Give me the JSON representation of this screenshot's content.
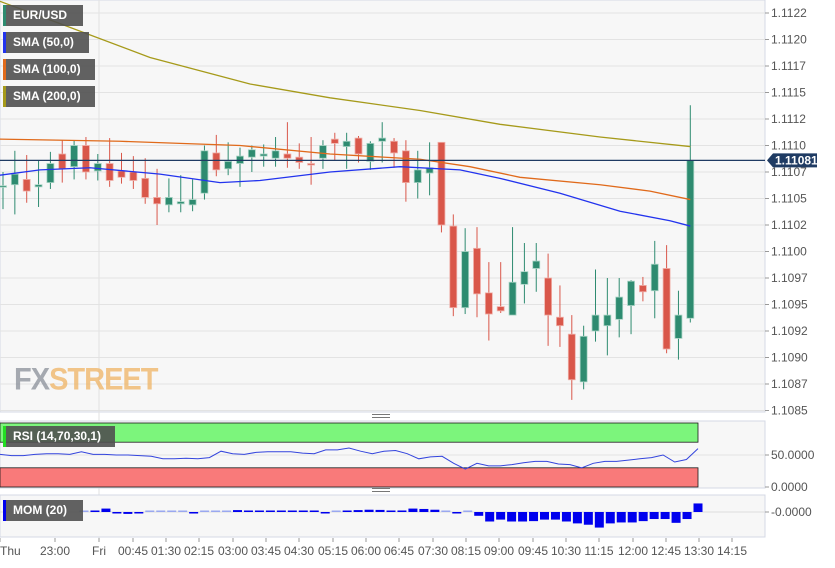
{
  "symbol": "EUR/USD",
  "legend": [
    {
      "label": "EUR/USD",
      "color": "#2e8b70"
    },
    {
      "label": "SMA (50,0)",
      "color": "#2233ee"
    },
    {
      "label": "SMA (100,0)",
      "color": "#e06a1b"
    },
    {
      "label": "SMA (200,0)",
      "color": "#a69a1a"
    }
  ],
  "logo": {
    "part1": "FX",
    "part2": "STREET"
  },
  "colors": {
    "up": "#2e8b70",
    "down": "#d9574a",
    "sma50": "#2233ee",
    "sma100": "#e06a1b",
    "sma200": "#a69a1a",
    "price_line": "#1f3b63",
    "rsi_line": "#3344dd",
    "rsi_overbought": "#7cf57c",
    "rsi_oversold": "#f97a7a",
    "mom_bar": "#0000ee",
    "grid": "#e3e3e3",
    "panel_bg": "#f7f7f7",
    "axis_text": "#555555"
  },
  "price_axis": {
    "ticks": [
      "1.1122",
      "1.1120",
      "1.1117",
      "1.1115",
      "1.1112",
      "1.1110",
      "1.1107",
      "1.1105",
      "1.1102",
      "1.1100",
      "1.1097",
      "1.1095",
      "1.1092",
      "1.1090",
      "1.1087",
      "1.1085"
    ],
    "current_price_label": "1.11081"
  },
  "rsi": {
    "label": "RSI (14,70,30,1)",
    "ticks": [
      "50.0000",
      "0.0000"
    ]
  },
  "mom": {
    "label": "MOM (20)",
    "ticks": [
      "-0.0000"
    ]
  },
  "time_axis": {
    "ticks": [
      "Thu",
      "23:00",
      "Fri",
      "00:45",
      "01:30",
      "02:15",
      "03:00",
      "03:45",
      "04:30",
      "05:15",
      "06:00",
      "06:45",
      "07:30",
      "08:15",
      "09:00",
      "09:45",
      "10:30",
      "11:15",
      "12:00",
      "12:45",
      "13:30",
      "14:15"
    ]
  },
  "chart_data": [
    {
      "type": "candlestick",
      "title": "EUR/USD",
      "xlabel": "",
      "ylabel": "",
      "ylim": [
        1.1085,
        1.1123
      ],
      "grid": true,
      "legend_position": "top-left",
      "current_price": 1.11081,
      "x_ticks": [
        "Thu",
        "23:00",
        "Fri",
        "00:45",
        "01:30",
        "02:15",
        "03:00",
        "03:45",
        "04:30",
        "05:15",
        "06:00",
        "06:45",
        "07:30",
        "08:15",
        "09:00",
        "09:45",
        "10:30",
        "11:15",
        "12:00",
        "12:45",
        "13:30",
        "14:15"
      ],
      "candles": [
        {
          "o": 1.11057,
          "h": 1.1107,
          "l": 1.11035,
          "c": 1.11057
        },
        {
          "o": 1.11058,
          "h": 1.1109,
          "l": 1.1103,
          "c": 1.11068
        },
        {
          "o": 1.11063,
          "h": 1.11086,
          "l": 1.11041,
          "c": 1.11052
        },
        {
          "o": 1.11056,
          "h": 1.11081,
          "l": 1.11037,
          "c": 1.11058
        },
        {
          "o": 1.1106,
          "h": 1.11089,
          "l": 1.11054,
          "c": 1.11078
        },
        {
          "o": 1.11087,
          "h": 1.111,
          "l": 1.1106,
          "c": 1.11073
        },
        {
          "o": 1.11075,
          "h": 1.111,
          "l": 1.11063,
          "c": 1.11095
        },
        {
          "o": 1.11095,
          "h": 1.11103,
          "l": 1.11063,
          "c": 1.1107
        },
        {
          "o": 1.11071,
          "h": 1.11087,
          "l": 1.11062,
          "c": 1.11078
        },
        {
          "o": 1.11078,
          "h": 1.11102,
          "l": 1.11056,
          "c": 1.11062
        },
        {
          "o": 1.11071,
          "h": 1.11088,
          "l": 1.11059,
          "c": 1.11065
        },
        {
          "o": 1.1107,
          "h": 1.11085,
          "l": 1.11054,
          "c": 1.11062
        },
        {
          "o": 1.11064,
          "h": 1.11083,
          "l": 1.1104,
          "c": 1.11046
        },
        {
          "o": 1.11046,
          "h": 1.11073,
          "l": 1.1102,
          "c": 1.1104
        },
        {
          "o": 1.11039,
          "h": 1.11064,
          "l": 1.11032,
          "c": 1.11046
        },
        {
          "o": 1.1104,
          "h": 1.11067,
          "l": 1.11032,
          "c": 1.11042
        },
        {
          "o": 1.11039,
          "h": 1.11063,
          "l": 1.11033,
          "c": 1.11044
        },
        {
          "o": 1.1105,
          "h": 1.11095,
          "l": 1.11044,
          "c": 1.1109
        },
        {
          "o": 1.11088,
          "h": 1.11105,
          "l": 1.11066,
          "c": 1.11072
        },
        {
          "o": 1.11073,
          "h": 1.11098,
          "l": 1.11067,
          "c": 1.1108
        },
        {
          "o": 1.11078,
          "h": 1.11093,
          "l": 1.11056,
          "c": 1.11085
        },
        {
          "o": 1.11084,
          "h": 1.11095,
          "l": 1.1107,
          "c": 1.11091
        },
        {
          "o": 1.11085,
          "h": 1.11096,
          "l": 1.11075,
          "c": 1.11087
        },
        {
          "o": 1.11083,
          "h": 1.11103,
          "l": 1.11075,
          "c": 1.1109
        },
        {
          "o": 1.11087,
          "h": 1.11117,
          "l": 1.11074,
          "c": 1.11083
        },
        {
          "o": 1.11084,
          "h": 1.11097,
          "l": 1.11073,
          "c": 1.11079
        },
        {
          "o": 1.11078,
          "h": 1.11103,
          "l": 1.11058,
          "c": 1.11077
        },
        {
          "o": 1.11083,
          "h": 1.111,
          "l": 1.11073,
          "c": 1.11095
        },
        {
          "o": 1.11101,
          "h": 1.11107,
          "l": 1.11081,
          "c": 1.11097
        },
        {
          "o": 1.11094,
          "h": 1.11107,
          "l": 1.11073,
          "c": 1.11099
        },
        {
          "o": 1.11102,
          "h": 1.11104,
          "l": 1.11079,
          "c": 1.11087
        },
        {
          "o": 1.1108,
          "h": 1.11099,
          "l": 1.11072,
          "c": 1.11097
        },
        {
          "o": 1.11099,
          "h": 1.11117,
          "l": 1.11079,
          "c": 1.11102
        },
        {
          "o": 1.11099,
          "h": 1.11102,
          "l": 1.11074,
          "c": 1.11088
        },
        {
          "o": 1.1109,
          "h": 1.111,
          "l": 1.11042,
          "c": 1.1106
        },
        {
          "o": 1.1106,
          "h": 1.1109,
          "l": 1.11045,
          "c": 1.11072
        },
        {
          "o": 1.11069,
          "h": 1.11098,
          "l": 1.11048,
          "c": 1.11074
        },
        {
          "o": 1.11098,
          "h": 1.11098,
          "l": 1.11013,
          "c": 1.1102
        },
        {
          "o": 1.11019,
          "h": 1.1103,
          "l": 1.10934,
          "c": 1.10942
        },
        {
          "o": 1.10942,
          "h": 1.11017,
          "l": 1.10936,
          "c": 1.10995
        },
        {
          "o": 1.10998,
          "h": 1.11018,
          "l": 1.10933,
          "c": 1.10955
        },
        {
          "o": 1.10956,
          "h": 1.10985,
          "l": 1.10911,
          "c": 1.10936
        },
        {
          "o": 1.10943,
          "h": 1.10985,
          "l": 1.10937,
          "c": 1.10939
        },
        {
          "o": 1.10935,
          "h": 1.11018,
          "l": 1.10935,
          "c": 1.10966
        },
        {
          "o": 1.10964,
          "h": 1.11003,
          "l": 1.10946,
          "c": 1.10976
        },
        {
          "o": 1.10979,
          "h": 1.11003,
          "l": 1.10957,
          "c": 1.10986
        },
        {
          "o": 1.1097,
          "h": 1.10993,
          "l": 1.10906,
          "c": 1.10935
        },
        {
          "o": 1.10933,
          "h": 1.10963,
          "l": 1.10905,
          "c": 1.10925
        },
        {
          "o": 1.10917,
          "h": 1.10935,
          "l": 1.10855,
          "c": 1.10874
        },
        {
          "o": 1.10872,
          "h": 1.10925,
          "l": 1.10865,
          "c": 1.10915
        },
        {
          "o": 1.1092,
          "h": 1.10978,
          "l": 1.1091,
          "c": 1.10935
        },
        {
          "o": 1.10925,
          "h": 1.1097,
          "l": 1.10897,
          "c": 1.10935
        },
        {
          "o": 1.10931,
          "h": 1.1097,
          "l": 1.10914,
          "c": 1.10952
        },
        {
          "o": 1.10944,
          "h": 1.10968,
          "l": 1.10917,
          "c": 1.10967
        },
        {
          "o": 1.10963,
          "h": 1.10971,
          "l": 1.10948,
          "c": 1.10957
        },
        {
          "o": 1.10958,
          "h": 1.11005,
          "l": 1.10932,
          "c": 1.10983
        },
        {
          "o": 1.10979,
          "h": 1.11001,
          "l": 1.10899,
          "c": 1.10903
        },
        {
          "o": 1.10913,
          "h": 1.10958,
          "l": 1.10893,
          "c": 1.10935
        },
        {
          "o": 1.10932,
          "h": 1.11133,
          "l": 1.10928,
          "c": 1.11081
        }
      ],
      "sma50": {
        "start": 1.11067,
        "end": 1.11019
      },
      "sma100": {
        "start": 1.11101,
        "end": 1.11044
      },
      "sma200": {
        "start": 1.11231,
        "end": 1.11094
      }
    },
    {
      "type": "line",
      "title": "RSI (14,70,30,1)",
      "ylim": [
        0,
        100
      ],
      "bands": {
        "overbought": 70,
        "oversold": 30
      },
      "y_ticks": [
        50,
        0
      ],
      "values": [
        51,
        49,
        49,
        51,
        52,
        52,
        51,
        55,
        51,
        51,
        50,
        50,
        49,
        48,
        44,
        44,
        45,
        44,
        46,
        56,
        52,
        51,
        54,
        55,
        55,
        55,
        53,
        52,
        58,
        58,
        61,
        56,
        52,
        56,
        57,
        52,
        44,
        47,
        48,
        37,
        28,
        37,
        33,
        33,
        35,
        38,
        40,
        40,
        36,
        35,
        30,
        37,
        40,
        40,
        42,
        44,
        46,
        50,
        39,
        43,
        60
      ]
    },
    {
      "type": "bar",
      "title": "MOM (20)",
      "zero_label": "-0.0000",
      "values": [
        2e-05,
        5e-05,
        0.00018,
        -5e-05,
        -0.0001,
        -5e-05,
        2e-05,
        0,
        2e-05,
        2e-05,
        -8e-05,
        0,
        2e-05,
        0,
        0.0001,
        4e-05,
        4e-05,
        7e-05,
        5e-05,
        3e-05,
        6e-05,
        4e-05,
        -6e-05,
        2e-05,
        6e-05,
        0.0001,
        0.00012,
        0.00011,
        5e-05,
        8e-05,
        0.00018,
        0.00016,
        0.00012,
        2e-05,
        -6e-05,
        0,
        -0.0002,
        -0.0005,
        -0.0004,
        -0.0005,
        -0.0005,
        -0.00048,
        -0.0004,
        -0.0004,
        -0.0005,
        -0.0006,
        -0.00067,
        -0.00082,
        -0.0006,
        -0.00055,
        -0.00055,
        -0.00048,
        -0.00037,
        -0.00037,
        -0.00057,
        -0.00037,
        0.00045
      ]
    }
  ]
}
